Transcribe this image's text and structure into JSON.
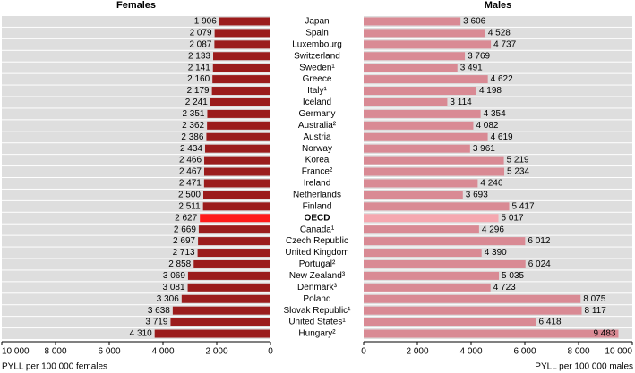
{
  "chart_data": [
    {
      "type": "bar",
      "orientation": "horizontal",
      "reversed": true,
      "title": "Females",
      "x_label": "PYLL per 100 000 females",
      "categories": [
        "Japan",
        "Spain",
        "Luxembourg",
        "Switzerland",
        "Sweden¹",
        "Greece",
        "Italy¹",
        "Iceland",
        "Germany",
        "Australia²",
        "Austria",
        "Norway",
        "Korea",
        "France²",
        "Ireland",
        "Netherlands",
        "Finland",
        "OECD",
        "Canada¹",
        "Czech Republic",
        "United Kingdom",
        "Portugal²",
        "New Zealand³",
        "Denmark³",
        "Poland",
        "Slovak Republic¹",
        "United States¹",
        "Hungary²"
      ],
      "values": [
        1906,
        2079,
        2087,
        2133,
        2141,
        2160,
        2179,
        2241,
        2351,
        2362,
        2386,
        2434,
        2466,
        2467,
        2471,
        2500,
        2511,
        2627,
        2669,
        2697,
        2713,
        2858,
        3069,
        3081,
        3306,
        3638,
        3719,
        4310
      ],
      "value_labels": [
        "1 906",
        "2 079",
        "2 087",
        "2 133",
        "2 141",
        "2 160",
        "2 179",
        "2 241",
        "2 351",
        "2 362",
        "2 386",
        "2 434",
        "2 466",
        "2 467",
        "2 471",
        "2 500",
        "2 511",
        "2 627",
        "2 669",
        "2 697",
        "2 713",
        "2 858",
        "3 069",
        "3 081",
        "3 306",
        "3 638",
        "3 719",
        "4 310"
      ],
      "color": "#9b1c1c",
      "highlight": "OECD",
      "highlight_color": "#ff1a1a",
      "xlim": [
        0,
        10000
      ],
      "xticks": [
        0,
        {
          "value": 2000,
          "label": "2 000"
        },
        {
          "value": 4000,
          "label": "4 000"
        },
        {
          "value": 6000,
          "label": "6 000"
        },
        {
          "value": 8000,
          "label": "8 000"
        },
        {
          "value": 10000,
          "label": "10 000"
        }
      ]
    },
    {
      "type": "bar",
      "orientation": "horizontal",
      "reversed": false,
      "title": "Males",
      "x_label": "PYLL per 100 000 males",
      "values": [
        3606,
        4528,
        4737,
        3769,
        3491,
        4622,
        4198,
        3114,
        4354,
        4082,
        4619,
        3961,
        5219,
        5234,
        4246,
        3693,
        5417,
        5017,
        4296,
        6012,
        4390,
        6024,
        5035,
        4723,
        8075,
        8117,
        6418,
        9483
      ],
      "value_labels": [
        "3 606",
        "4 528",
        "4 737",
        "3 769",
        "3 491",
        "4 622",
        "4 198",
        "3 114",
        "4 354",
        "4 082",
        "4 619",
        "3 961",
        "5 219",
        "5 234",
        "4 246",
        "3 693",
        "5 417",
        "5 017",
        "4 296",
        "6 012",
        "4 390",
        "6 024",
        "5 035",
        "4 723",
        "8 075",
        "8 117",
        "6 418",
        "9 483"
      ],
      "color": "#d98a94",
      "highlight": "OECD",
      "highlight_color": "#f5a8b0",
      "xlim": [
        0,
        10000
      ],
      "xticks": [
        0,
        {
          "value": 2000,
          "label": "2 000"
        },
        {
          "value": 4000,
          "label": "4 000"
        },
        {
          "value": 6000,
          "label": "6 000"
        },
        {
          "value": 8000,
          "label": "8 000"
        },
        {
          "value": 10000,
          "label": "10 000"
        }
      ]
    }
  ]
}
